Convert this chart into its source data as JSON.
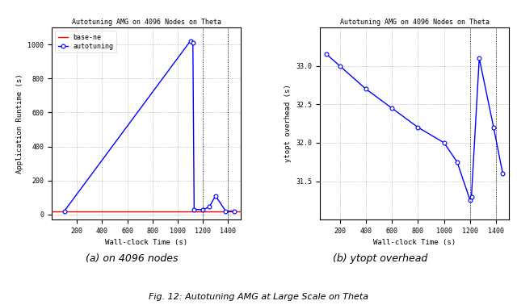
{
  "left": {
    "title": "Autotuning AMG on 4096 Nodes on Theta",
    "xlabel": "Wall-clock Time (s)",
    "ylabel": "Application Runtime (s)",
    "baseline_x": [
      0,
      1500
    ],
    "baseline_y": [
      20,
      20
    ],
    "autotune_x": [
      100,
      1100,
      1120,
      1130,
      1200,
      1250,
      1300,
      1380,
      1450
    ],
    "autotune_y": [
      20,
      1020,
      1010,
      30,
      28,
      45,
      110,
      20,
      20
    ],
    "xlim": [
      0,
      1500
    ],
    "ylim": [
      -30,
      1100
    ],
    "yticks": [
      0,
      200,
      400,
      600,
      800,
      1000
    ],
    "xticks": [
      200,
      400,
      600,
      800,
      1000,
      1200,
      1400
    ],
    "legend_labels": [
      "base‑ne",
      "autotuning"
    ],
    "vlines_x": [
      1200,
      1400
    ]
  },
  "right": {
    "title": "Autotuning AMG on 4096 Nodes on Theta",
    "xlabel": "Wall-clock Time (s)",
    "ylabel": "ytopt overhead (s)",
    "autotune_x": [
      100,
      200,
      400,
      600,
      800,
      1000,
      1100,
      1200,
      1210,
      1270,
      1380,
      1450
    ],
    "autotune_y": [
      33.15,
      33.0,
      32.7,
      32.45,
      32.2,
      32.0,
      31.75,
      31.25,
      31.3,
      33.1,
      32.2,
      31.6
    ],
    "xlim": [
      50,
      1500
    ],
    "ylim": [
      31.0,
      33.5
    ],
    "yticks": [
      31.5,
      32.0,
      32.5,
      33.0
    ],
    "xticks": [
      200,
      400,
      600,
      800,
      1000,
      1200,
      1400
    ],
    "vlines_x": [
      1200,
      1400
    ]
  },
  "caption_a": "(a) on 4096 nodes",
  "caption_b": "(b) ytopt overhead",
  "fig_caption": "Fig. 12: Autotuning AMG at Large Scale on Theta"
}
